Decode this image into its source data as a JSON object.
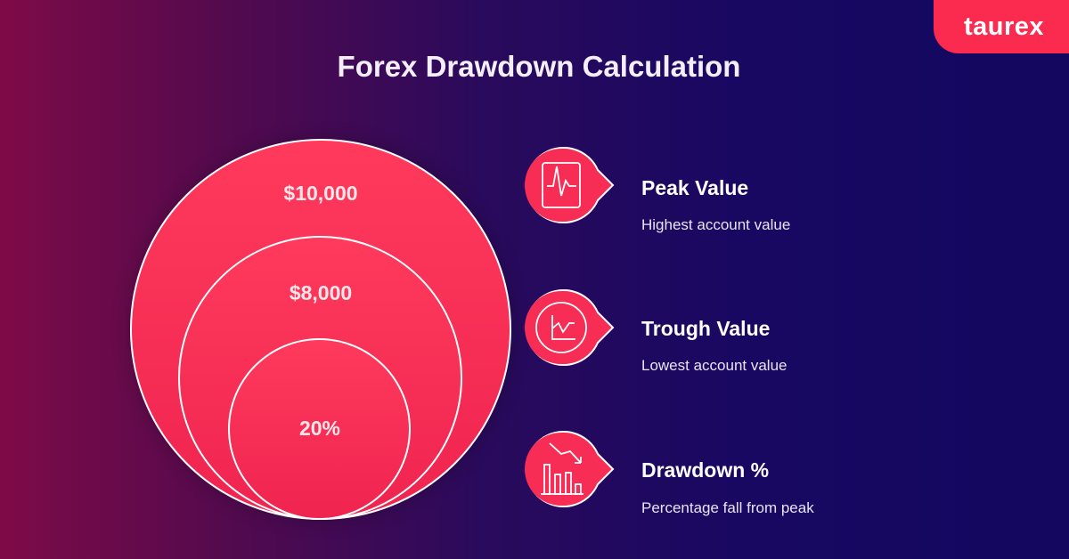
{
  "title": "Forex Drawdown Calculation",
  "logo": "taurex",
  "circles": {
    "outer": "$10,000",
    "middle": "$8,000",
    "inner": "20%"
  },
  "items": [
    {
      "title": "Peak Value",
      "subtitle": "Highest account value",
      "icon": "pulse-chart-icon"
    },
    {
      "title": "Trough Value",
      "subtitle": "Lowest account value",
      "icon": "line-chart-dip-icon"
    },
    {
      "title": "Drawdown %",
      "subtitle": "Percentage fall from peak",
      "icon": "declining-bar-chart-icon"
    }
  ],
  "colors": {
    "accent": "#fb2a4f",
    "background_left": "#7e0b48",
    "background_right": "#130760"
  }
}
